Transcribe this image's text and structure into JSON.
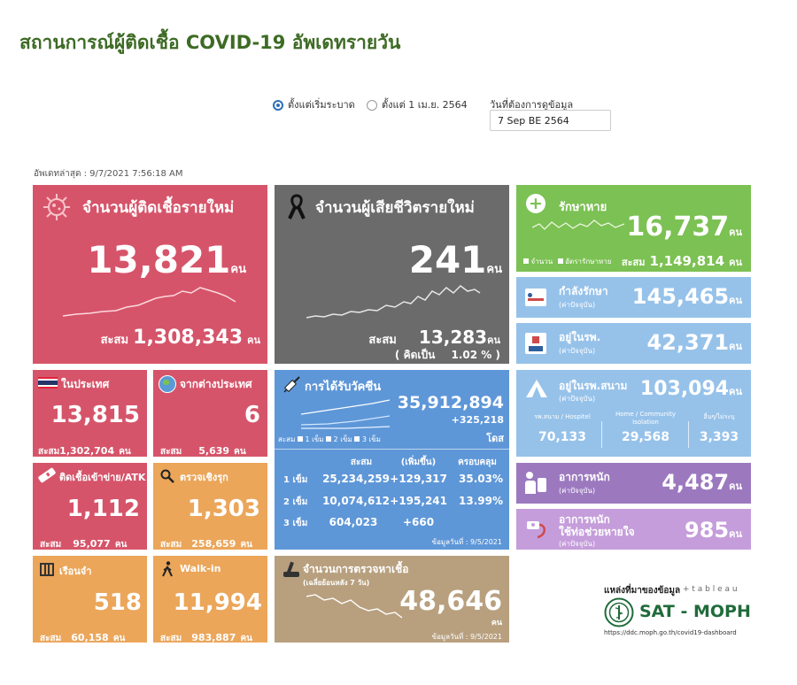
{
  "title": "สถานการณ์ผู้ติดเชื้อ COVID-19 อัพเดทรายวัน",
  "filter": {
    "option1_label": "ตั้งแต่เริ่มระบาด",
    "option2_label": "ตั้งแต่ 1 เม.ย. 2564",
    "date_label": "วันที่ต้องการดูข้อมูล",
    "date_value": "7 Sep BE 2564"
  },
  "updated": "อัพเดทล่าสุด : 9/7/2021 7:56:18 AM",
  "colors": {
    "new_cases": "#d6546a",
    "deaths": "#6b6b6b",
    "recovered": "#7cc153",
    "hospital": "#96c2ea",
    "vaccine": "#5e97d8",
    "severe": "#9c79bf",
    "orange": "#eba65a",
    "tan": "#b8a07f"
  },
  "new_cases": {
    "label": "จำนวนผู้ติดเชื้อรายใหม่",
    "value": "13,821",
    "unit": "คน",
    "cum_label": "สะสม",
    "cum_value": "1,308,343",
    "cum_unit": "คน",
    "icon": "virus-icon"
  },
  "deaths": {
    "label": "จำนวนผู้เสียชีวิตรายใหม่",
    "value": "241",
    "unit": "คน",
    "cum_label": "สะสม",
    "cum_value": "13,283",
    "cum_unit": "คน",
    "percent_label": "( คิดเป็น",
    "percent_value": "1.02 % )",
    "icon": "black-ribbon-icon"
  },
  "recovered": {
    "label": "รักษาหาย",
    "value": "16,737",
    "unit": "คน",
    "legend1": "จำนวน",
    "legend2": "อัตรารักษาหาย",
    "cum_label": "สะสม",
    "cum_value": "1,149,814",
    "cum_unit": "คน"
  },
  "in_treatment": {
    "label": "กำลังรักษา",
    "sub": "(ค่าปัจจุบัน)",
    "value": "145,465",
    "unit": "คน"
  },
  "in_hospital": {
    "label": "อยู่ในรพ.",
    "sub": "(ค่าปัจจุบัน)",
    "value": "42,371",
    "unit": "คน"
  },
  "field_hospital": {
    "label": "อยู่ในรพ.สนาม",
    "sub": "(ค่าปัจจุบัน)",
    "value": "103,094",
    "unit": "คน",
    "cols": [
      {
        "label": "รพ.สนาม / Hospitel",
        "value": "70,133"
      },
      {
        "label": "Home / Community Isolation",
        "value": "29,568"
      },
      {
        "label": "อื่นๆ/ไม่ระบุ",
        "value": "3,393"
      }
    ]
  },
  "severe": {
    "label": "อาการหนัก",
    "sub": "(ค่าปัจจุบัน)",
    "value": "4,487",
    "unit": "คน"
  },
  "ventilator": {
    "label": "อาการหนัก",
    "label2": "ใช้ท่อช่วยหายใจ",
    "sub": "(ค่าปัจจุบัน)",
    "value": "985",
    "unit": "คน"
  },
  "domestic": {
    "label": "ในประเทศ",
    "value": "13,815",
    "cum_label": "สะสม",
    "cum_value": "1,302,704",
    "cum_unit": "คน"
  },
  "imported": {
    "label": "จากต่างประเทศ",
    "value": "6",
    "cum_label": "สะสม",
    "cum_value": "5,639",
    "cum_unit": "คน"
  },
  "atk": {
    "label": "ติดเชื้อเข้าข่าย/ATK",
    "value": "1,112",
    "cum_label": "สะสม",
    "cum_value": "95,077",
    "cum_unit": "คน"
  },
  "proactive": {
    "label": "ตรวจเชิงรุก",
    "value": "1,303",
    "cum_label": "สะสม",
    "cum_value": "258,659",
    "cum_unit": "คน"
  },
  "prison": {
    "label": "เรือนจำ",
    "value": "518",
    "cum_label": "สะสม",
    "cum_value": "60,158",
    "cum_unit": "คน"
  },
  "walkin": {
    "label": "Walk-in",
    "value": "11,994",
    "cum_label": "สะสม",
    "cum_value": "983,887",
    "cum_unit": "คน"
  },
  "vaccine": {
    "label": "การได้รับวัคซีน",
    "total": "35,912,894",
    "increase": "+325,218",
    "unit": "โดส",
    "legend_prefix": "สะสม",
    "legend": [
      "1 เข็ม",
      "2 เข็ม",
      "3 เข็ม"
    ],
    "headers": [
      "สะสม",
      "(เพิ่มขึ้น)",
      "ครอบคลุม"
    ],
    "rows": [
      {
        "dose": "1 เข็ม",
        "cum": "25,234,259",
        "inc": "+129,317",
        "cov": "35.03%"
      },
      {
        "dose": "2 เข็ม",
        "cum": "10,074,612",
        "inc": "+195,241",
        "cov": "13.99%"
      },
      {
        "dose": "3 เข็ม",
        "cum": "604,023",
        "inc": "+660",
        "cov": ""
      }
    ],
    "as_of": "ข้อมูลวันที่ : 9/5/2021"
  },
  "tests": {
    "label": "จำนวนการตรวจหาเชื้อ",
    "sub": "(เฉลี่ยย้อนหลัง 7 วัน)",
    "value": "48,646",
    "unit": "คน",
    "as_of": "ข้อมูลวันที่ : 9/5/2021"
  },
  "source": {
    "label": "แหล่งที่มาของข้อมูล",
    "tableau": "+ t a b l e a u",
    "org": "SAT - MOPH",
    "url": "https://ddc.moph.go.th/covid19-dashboard"
  }
}
